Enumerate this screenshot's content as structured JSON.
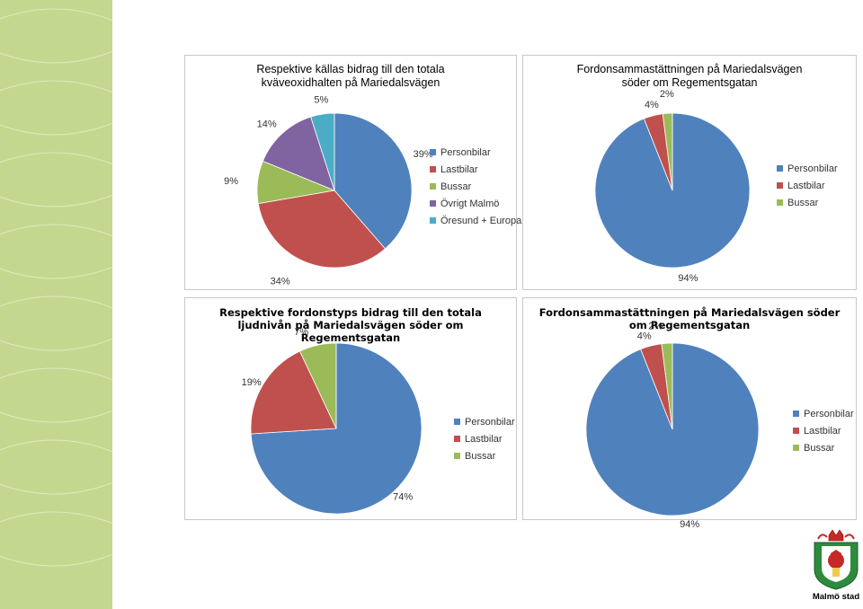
{
  "colors": {
    "personbilar": "#4f81bd",
    "lastbilar": "#c0504d",
    "bussar": "#9bbb59",
    "ovrigt": "#8064a2",
    "oresund": "#4bacc6",
    "sidebar": "#c4d78e"
  },
  "chart_data": [
    {
      "type": "pie",
      "title": "Respektive källas bidrag till den totala kväveoxidhalten på Mariedalsvägen",
      "title_lines": [
        "Respektive källas bidrag till den totala",
        "kväveoxidhalten på Mariedalsvägen"
      ],
      "categories": [
        "Personbilar",
        "Lastbilar",
        "Bussar",
        "Övrigt Malmö",
        "Öresund + Europa"
      ],
      "values": [
        39,
        34,
        9,
        14,
        5
      ],
      "labels": [
        "39%",
        "34%",
        "9%",
        "14%",
        "5%"
      ],
      "legend": "right"
    },
    {
      "type": "pie",
      "title": "Fordonsammastättningen på Mariedalsvägen söder om Regementsgatan",
      "title_lines": [
        "Fordonsammastättningen på Mariedalsvägen",
        "söder om Regementsgatan"
      ],
      "categories": [
        "Personbilar",
        "Lastbilar",
        "Bussar"
      ],
      "values": [
        94,
        4,
        2
      ],
      "labels": [
        "94%",
        "4%",
        "2%"
      ],
      "legend": "right"
    },
    {
      "type": "pie",
      "title": "Respektive fordonstyps bidrag till den totala ljudnivån på Mariedalsvägen söder om Regementsgatan",
      "title_lines": [
        "Respektive fordonstyps bidrag till den totala",
        "ljudnivån på Mariedalsvägen söder om",
        "Regementsgatan"
      ],
      "categories": [
        "Personbilar",
        "Lastbilar",
        "Bussar"
      ],
      "values": [
        74,
        19,
        7
      ],
      "labels": [
        "74%",
        "19%",
        "7%"
      ],
      "legend": "right"
    },
    {
      "type": "pie",
      "title": "Fordonsammastättningen på Mariedalsvägen söder om Regementsgatan",
      "title_lines": [
        "Fordonsammastättningen på Mariedalsvägen söder",
        "om Regementsgatan"
      ],
      "categories": [
        "Personbilar",
        "Lastbilar",
        "Bussar"
      ],
      "values": [
        94,
        4,
        2
      ],
      "labels": [
        "94%",
        "4%",
        "2%"
      ],
      "legend": "right"
    }
  ],
  "logo": {
    "text": "Malmö stad"
  }
}
